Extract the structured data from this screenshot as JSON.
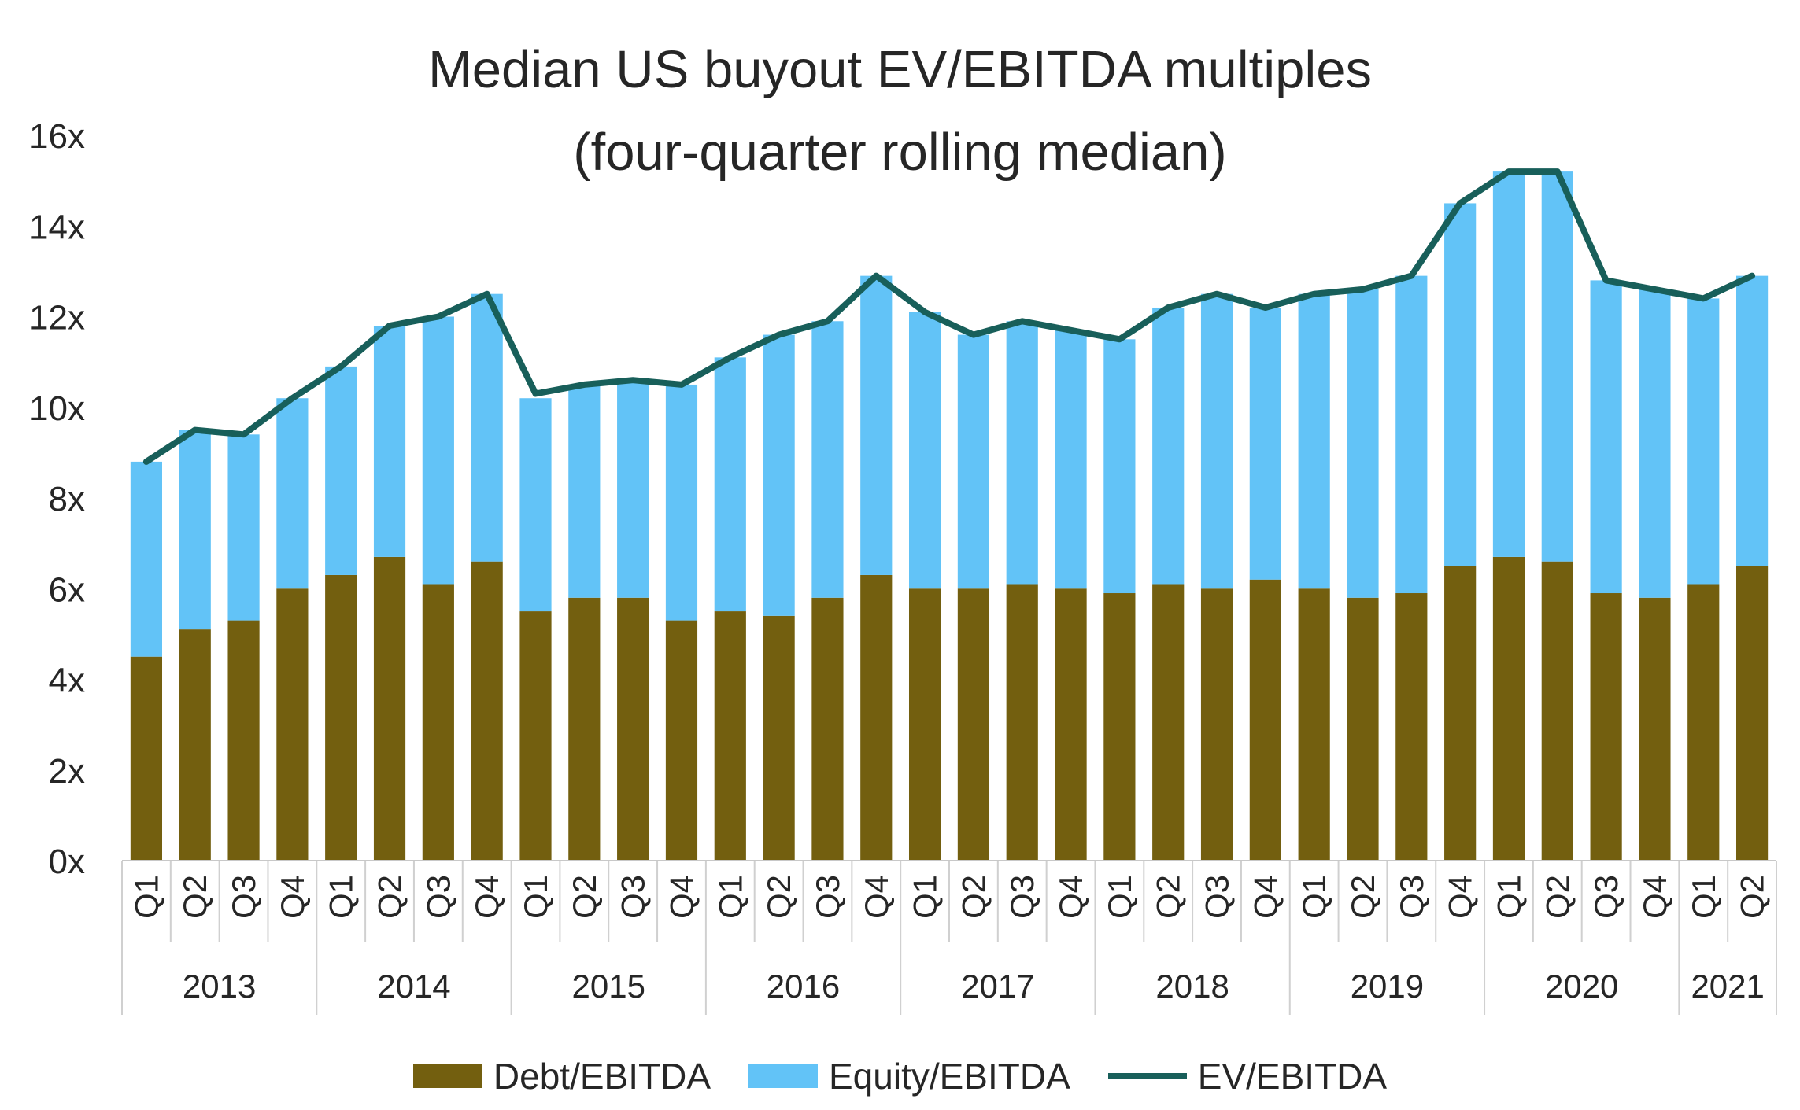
{
  "chart_data": {
    "type": "bar",
    "stacked": true,
    "title": "Median US buyout EV/EBITDA multiples",
    "subtitle": "(four-quarter rolling median)",
    "xlabel": "",
    "ylabel": "",
    "ylim": [
      0,
      16
    ],
    "yticks": [
      "0x",
      "2x",
      "4x",
      "6x",
      "8x",
      "10x",
      "12x",
      "14x",
      "16x"
    ],
    "grid": false,
    "legend_position": "bottom",
    "years": [
      {
        "label": "2013",
        "quarters": 4
      },
      {
        "label": "2014",
        "quarters": 4
      },
      {
        "label": "2015",
        "quarters": 4
      },
      {
        "label": "2016",
        "quarters": 4
      },
      {
        "label": "2017",
        "quarters": 4
      },
      {
        "label": "2018",
        "quarters": 4
      },
      {
        "label": "2019",
        "quarters": 4
      },
      {
        "label": "2020",
        "quarters": 4
      },
      {
        "label": "2021",
        "quarters": 2
      }
    ],
    "categories": [
      "Q1",
      "Q2",
      "Q3",
      "Q4",
      "Q1",
      "Q2",
      "Q3",
      "Q4",
      "Q1",
      "Q2",
      "Q3",
      "Q4",
      "Q1",
      "Q2",
      "Q3",
      "Q4",
      "Q1",
      "Q2",
      "Q3",
      "Q4",
      "Q1",
      "Q2",
      "Q3",
      "Q4",
      "Q1",
      "Q2",
      "Q3",
      "Q4",
      "Q1",
      "Q2",
      "Q3",
      "Q4",
      "Q1",
      "Q2"
    ],
    "series": [
      {
        "name": "Debt/EBITDA",
        "kind": "bar",
        "color": "#735F0F",
        "values": [
          4.5,
          5.1,
          5.3,
          6.0,
          6.3,
          6.7,
          6.1,
          6.6,
          5.5,
          5.8,
          5.8,
          5.3,
          5.5,
          5.4,
          5.8,
          6.3,
          6.0,
          6.0,
          6.1,
          6.0,
          5.9,
          6.1,
          6.0,
          6.2,
          6.0,
          5.8,
          5.9,
          6.5,
          6.7,
          6.6,
          5.9,
          5.8,
          6.1,
          6.5
        ]
      },
      {
        "name": "Equity/EBITDA",
        "kind": "bar",
        "color": "#62C3F7",
        "values": [
          4.3,
          4.4,
          4.1,
          4.2,
          4.6,
          5.1,
          5.9,
          5.9,
          4.7,
          4.7,
          4.8,
          5.2,
          5.6,
          6.2,
          6.1,
          6.6,
          6.1,
          5.6,
          5.8,
          5.7,
          5.6,
          6.1,
          6.5,
          6.0,
          6.5,
          6.8,
          7.0,
          8.0,
          8.5,
          8.6,
          6.9,
          6.8,
          6.3,
          6.4
        ]
      },
      {
        "name": "EV/EBITDA",
        "kind": "line",
        "color": "#185F5A",
        "values": [
          8.8,
          9.5,
          9.4,
          10.2,
          10.9,
          11.8,
          12.0,
          12.5,
          10.3,
          10.5,
          10.6,
          10.5,
          11.1,
          11.6,
          11.9,
          12.9,
          12.1,
          11.6,
          11.9,
          11.7,
          11.5,
          12.2,
          12.5,
          12.2,
          12.5,
          12.6,
          12.9,
          14.5,
          15.2,
          15.2,
          12.8,
          12.6,
          12.4,
          12.9
        ]
      }
    ]
  }
}
